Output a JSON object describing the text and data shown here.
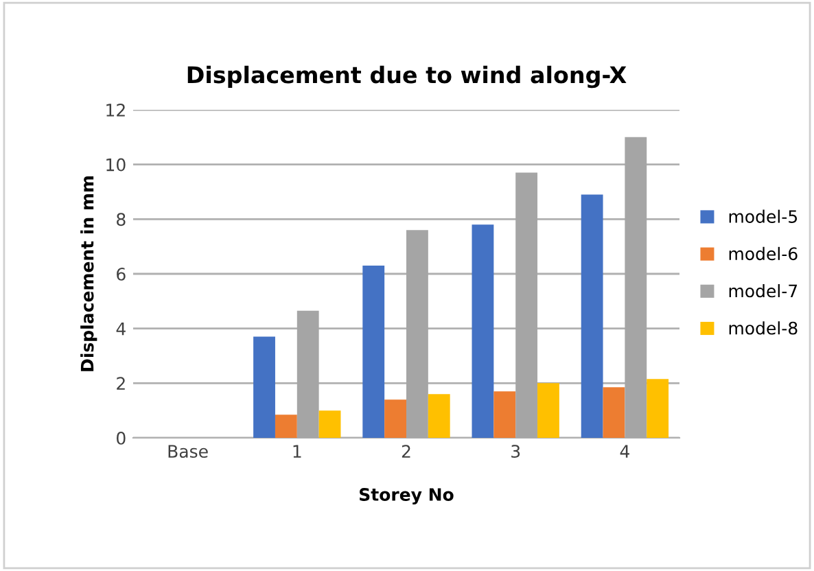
{
  "chart_data": {
    "type": "bar",
    "title": "Displacement due to wind along-X",
    "xlabel": "Storey No",
    "ylabel": "Displacement in mm",
    "categories": [
      "Base",
      "1",
      "2",
      "3",
      "4"
    ],
    "series": [
      {
        "name": "model-5",
        "color": "#4472c4",
        "values": [
          0,
          3.7,
          6.3,
          7.8,
          8.9
        ]
      },
      {
        "name": "model-6",
        "color": "#ed7d31",
        "values": [
          0,
          0.85,
          1.4,
          1.7,
          1.85
        ]
      },
      {
        "name": "model-7",
        "color": "#a5a5a5",
        "values": [
          0,
          4.65,
          7.6,
          9.7,
          11.0
        ]
      },
      {
        "name": "model-8",
        "color": "#ffc000",
        "values": [
          0,
          1.0,
          1.6,
          2.0,
          2.15
        ]
      }
    ],
    "ylim": [
      0,
      12
    ],
    "yticks": [
      0,
      2,
      4,
      6,
      8,
      10,
      12
    ],
    "grid": "y",
    "legend": "right"
  }
}
